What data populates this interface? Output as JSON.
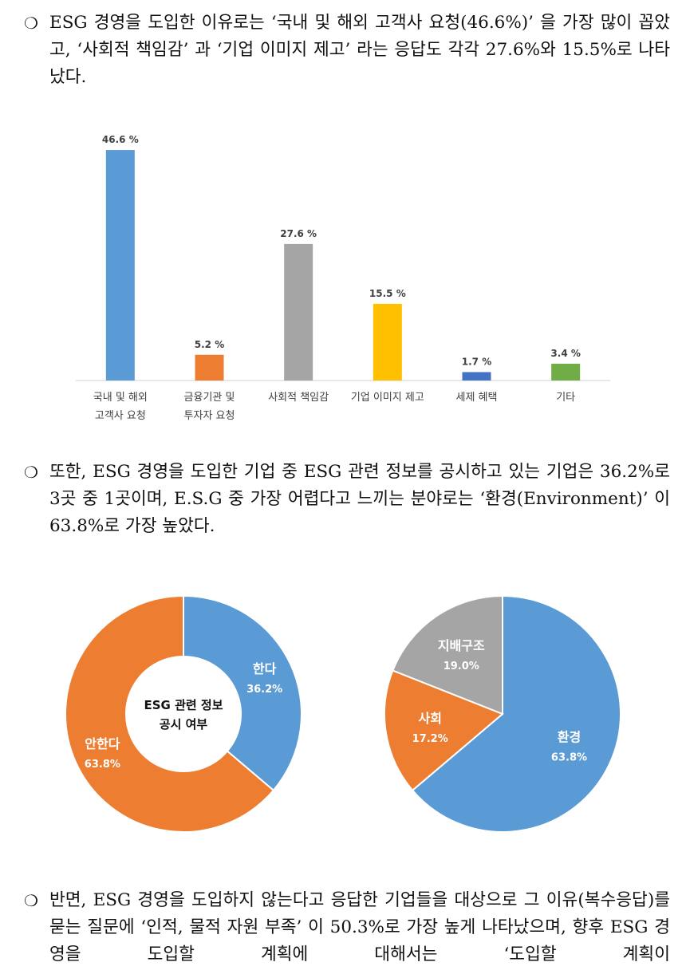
{
  "paragraphs": [
    {
      "bullet": "❍",
      "text": "ESG 경영을 도입한 이유로는 ‘국내 및 해외 고객사 요청(46.6%)’ 을 가장 많이 꼽았고, ‘사회적 책임감’ 과 ‘기업 이미지 제고’ 라는 응답도 각각 27.6%와 15.5%로 나타났다."
    },
    {
      "bullet": "❍",
      "text": "또한, ESG 경영을 도입한 기업 중 ESG 관련 정보를 공시하고 있는 기업은 36.2%로 3곳 중 1곳이며, E.S.G 중 가장 어렵다고 느끼는 분야로는 ‘환경(Environment)’ 이 63.8%로 가장 높았다."
    },
    {
      "bullet": "❍",
      "text": "반면, ESG 경영을 도입하지 않는다고 응답한 기업들을 대상으로 그 이유(복수응답)를 묻는 질문에 ‘인적, 물적 자원 부족’ 이 50.3%로 가장 높게 나타났으며, 향후 ESG 경영을 도입할 계획에 대해서는 ‘도입할 계획이"
    }
  ],
  "chart_data": [
    {
      "type": "bar",
      "categories": [
        [
          "국내 및 해외",
          "고객사 요청"
        ],
        [
          "금융기관 및",
          "투자자 요청"
        ],
        [
          "사회적 책임감"
        ],
        [
          "기업 이미지 제고"
        ],
        [
          "세제 혜택"
        ],
        [
          "기타"
        ]
      ],
      "values": [
        46.6,
        5.2,
        27.6,
        15.5,
        1.7,
        3.4
      ],
      "value_labels": [
        "46.6 %",
        "5.2 %",
        "27.6 %",
        "15.5 %",
        "1.7 %",
        "3.4 %"
      ],
      "colors": [
        "#5b9bd5",
        "#ed7d31",
        "#a5a5a5",
        "#ffc000",
        "#4472c4",
        "#70ad47"
      ],
      "ylim": [
        0,
        50
      ],
      "grid": false
    },
    {
      "type": "pie",
      "style": "donut",
      "center_label": [
        "ESG 관련 정보",
        "공시 여부"
      ],
      "slices": [
        {
          "name": "한다",
          "value": 36.2,
          "value_label": "36.2%",
          "color": "#5b9bd5"
        },
        {
          "name": "안한다",
          "value": 63.8,
          "value_label": "63.8%",
          "color": "#ed7d31"
        }
      ]
    },
    {
      "type": "pie",
      "slices": [
        {
          "name": "환경",
          "value": 63.8,
          "value_label": "63.8%",
          "color": "#5b9bd5"
        },
        {
          "name": "사회",
          "value": 17.2,
          "value_label": "17.2%",
          "color": "#ed7d31"
        },
        {
          "name": "지배구조",
          "value": 19.0,
          "value_label": "19.0%",
          "color": "#a5a5a5"
        }
      ]
    }
  ]
}
